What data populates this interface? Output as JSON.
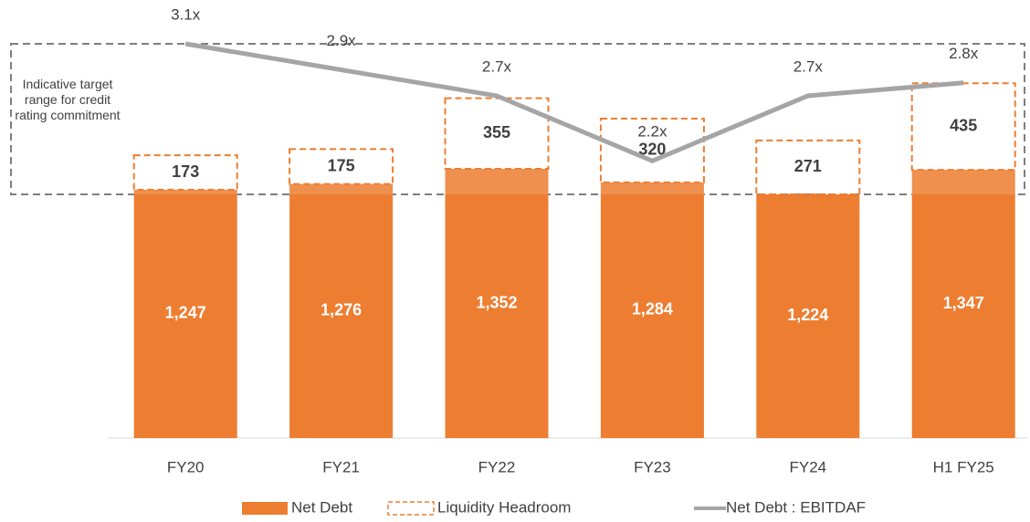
{
  "chart_data": {
    "type": "bar",
    "categories": [
      "FY20",
      "FY21",
      "FY22",
      "FY23",
      "FY24",
      "H1 FY25"
    ],
    "series": [
      {
        "name": "Net Debt",
        "type": "bar",
        "color": "#ED7D31",
        "values": [
          1247,
          1276,
          1352,
          1284,
          1224,
          1347
        ],
        "value_labels": [
          "1,247",
          "1,276",
          "1,352",
          "1,284",
          "1,224",
          "1,347"
        ]
      },
      {
        "name": "Liquidity Headroom",
        "type": "dashed-bar",
        "color": "#ED7D31",
        "values": [
          173,
          175,
          355,
          320,
          271,
          435
        ]
      },
      {
        "name": "Net Debt : EBITDAF",
        "type": "line",
        "axis": "y2",
        "color": "#A5A5A5",
        "values": [
          3.1,
          2.9,
          2.7,
          2.2,
          2.7,
          2.8
        ],
        "value_labels": [
          "3.1x",
          "2.9x",
          "2.7x",
          "2.2x",
          "2.7x",
          "2.8x"
        ]
      }
    ],
    "annotation": "Indicative target range for credit rating commitment",
    "ylim": [
      0,
      2200
    ],
    "y2lim": [
      0,
      3.4
    ],
    "stacked": true,
    "legend": "bottom"
  }
}
